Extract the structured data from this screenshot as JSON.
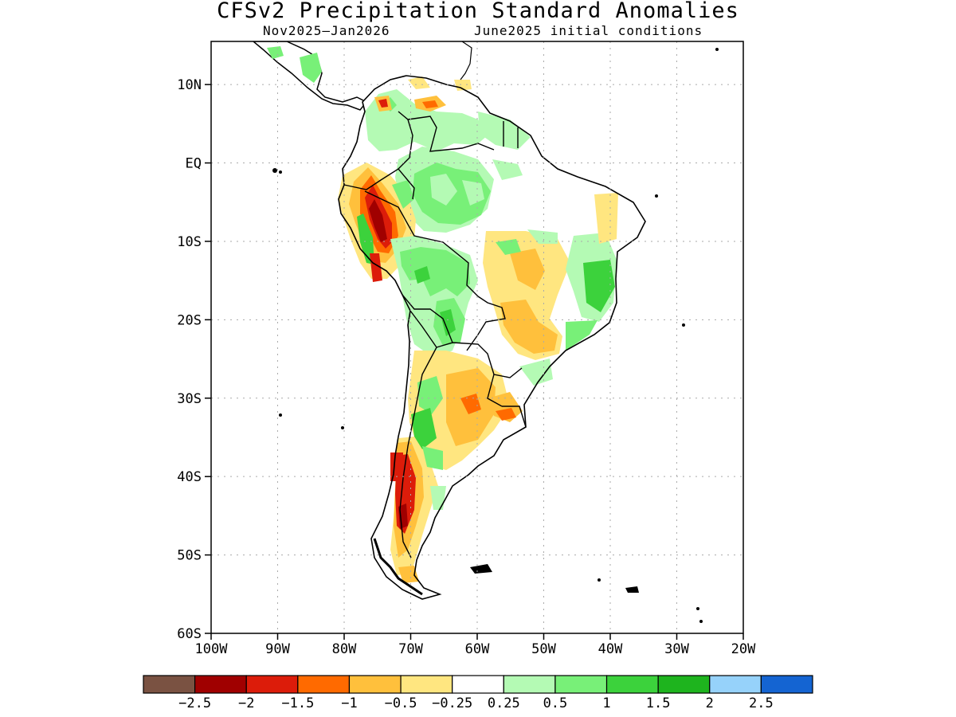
{
  "title": "CFSv2 Precipitation Standard Anomalies",
  "subtitle_left": "Nov2025–Jan2026",
  "subtitle_right": "June2025 initial conditions",
  "map": {
    "lat_labels": [
      "10N",
      "EQ",
      "10S",
      "20S",
      "30S",
      "40S",
      "50S",
      "60S"
    ],
    "lon_labels": [
      "100W",
      "90W",
      "80W",
      "70W",
      "60W",
      "50W",
      "40W",
      "30W",
      "20W"
    ],
    "lat_range": [
      -60,
      15.5
    ],
    "lon_range": [
      -100,
      -20
    ]
  },
  "legend": {
    "colors": [
      "#7a5242",
      "#a00000",
      "#dc1c0a",
      "#ff6a00",
      "#ffc03c",
      "#ffe680",
      "#ffffff",
      "#b4fab4",
      "#78f078",
      "#3cd23c",
      "#1eb41e",
      "#96d2fa",
      "#1464d2"
    ],
    "labels": [
      "−2.5",
      "−2",
      "−1.5",
      "−1",
      "−0.5",
      "−0.25",
      "0.25",
      "0.5",
      "1",
      "1.5",
      "2",
      "2.5"
    ]
  }
}
